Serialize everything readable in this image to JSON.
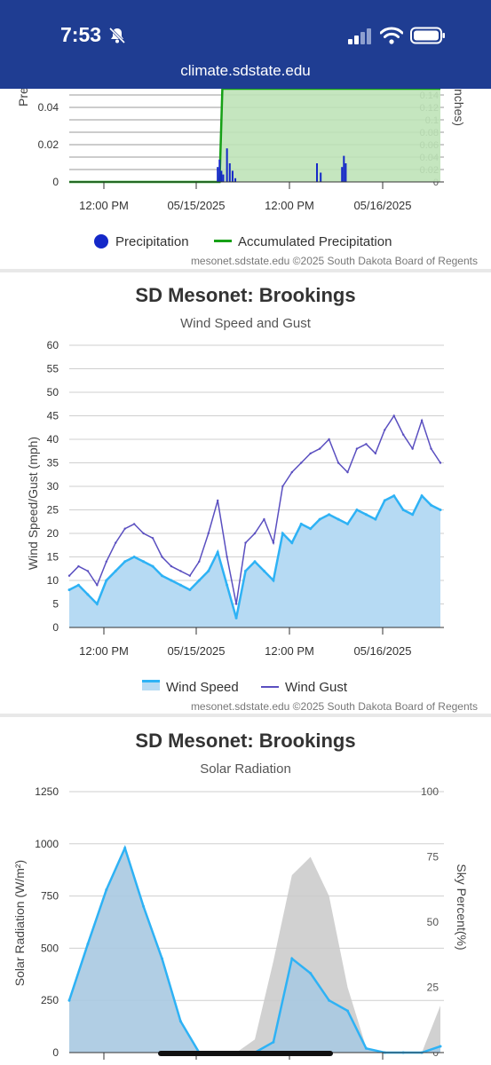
{
  "status_bar": {
    "time": "7:53"
  },
  "browser": {
    "url": "climate.sdstate.edu"
  },
  "precip_chart": {
    "partial_left_label": "Pre",
    "partial_right_label": "nches)",
    "legend": {
      "precipitation": "Precipitation",
      "accumulated": "Accumulated Precipitation"
    },
    "credit": "mesonet.sdstate.edu ©2025 South Dakota Board of Regents",
    "colors": {
      "precipitation": "#1428c8",
      "accumulated": "#16a016",
      "area": "#bfe3b8"
    }
  },
  "wind_chart": {
    "title": "SD Mesonet: Brookings",
    "subtitle": "Wind Speed and Gust",
    "legend": {
      "speed": "Wind Speed",
      "gust": "Wind Gust"
    },
    "credit": "mesonet.sdstate.edu ©2025 South Dakota Board of Regents",
    "colors": {
      "speed": "#2eb2f5",
      "speed_fill": "#b6daf3",
      "gust": "#5a4fc0"
    }
  },
  "solar_chart": {
    "title": "SD Mesonet: Brookings",
    "subtitle": "Solar Radiation",
    "colors": {
      "solar": "#2eb2f5",
      "solar_fill": "#a9c9e1",
      "sky": "#c9c9c9"
    }
  },
  "chart_data": [
    {
      "type": "line",
      "ylabel": "Pre",
      "y2label": "nches)",
      "yticks": [
        "0",
        "0.02",
        "0.04"
      ],
      "y2ticks": [
        "0",
        "0.02",
        "0.04",
        "0.06",
        "0.08",
        "0.1",
        "0.12",
        "0.14"
      ],
      "xticks": [
        "12:00 PM",
        "05/15/2025",
        "12:00 PM",
        "05/16/2025"
      ],
      "series": [
        {
          "name": "Precipitation",
          "x": [
            1.6,
            1.62,
            1.64,
            1.66,
            1.7,
            1.73,
            1.76,
            1.79,
            2.67,
            2.71,
            2.94,
            2.96,
            2.98
          ],
          "values": [
            0.008,
            0.012,
            0.006,
            0.004,
            0.018,
            0.01,
            0.006,
            0.002,
            0.01,
            0.005,
            0.008,
            0.014,
            0.01
          ]
        },
        {
          "name": "Accumulated Precipitation",
          "x": [
            0,
            1.62,
            1.65,
            1.72,
            1.8,
            2.7,
            2.95,
            3.0,
            4.0
          ],
          "values": [
            0,
            0,
            0.15,
            0.15,
            0.15,
            0.15,
            0.15,
            0.15,
            0.15
          ]
        }
      ]
    },
    {
      "type": "line",
      "title": "SD Mesonet: Brookings",
      "subtitle": "Wind Speed and Gust",
      "ylabel": "Wind Speed/Gust (mph)",
      "ylim": [
        0,
        60
      ],
      "yticks": [
        "0",
        "5",
        "10",
        "15",
        "20",
        "25",
        "30",
        "35",
        "40",
        "45",
        "50",
        "55",
        "60"
      ],
      "xticks": [
        "12:00 PM",
        "05/15/2025",
        "12:00 PM",
        "05/16/2025"
      ],
      "x": [
        0,
        0.1,
        0.2,
        0.3,
        0.4,
        0.5,
        0.6,
        0.7,
        0.8,
        0.9,
        1.0,
        1.1,
        1.2,
        1.3,
        1.4,
        1.5,
        1.6,
        1.7,
        1.8,
        1.9,
        2.0,
        2.1,
        2.2,
        2.3,
        2.4,
        2.5,
        2.6,
        2.7,
        2.8,
        2.9,
        3.0,
        3.1,
        3.2,
        3.3,
        3.4,
        3.5,
        3.6,
        3.7,
        3.8,
        3.9,
        4.0
      ],
      "series": [
        {
          "name": "Wind Speed",
          "values": [
            8,
            9,
            7,
            5,
            10,
            12,
            14,
            15,
            14,
            13,
            11,
            10,
            9,
            8,
            10,
            12,
            16,
            9,
            2,
            12,
            14,
            12,
            10,
            20,
            18,
            22,
            21,
            23,
            24,
            23,
            22,
            25,
            24,
            23,
            27,
            28,
            25,
            24,
            28,
            26,
            25
          ]
        },
        {
          "name": "Wind Gust",
          "values": [
            11,
            13,
            12,
            9,
            14,
            18,
            21,
            22,
            20,
            19,
            15,
            13,
            12,
            11,
            14,
            20,
            27,
            15,
            5,
            18,
            20,
            23,
            18,
            30,
            33,
            35,
            37,
            38,
            40,
            35,
            33,
            38,
            39,
            37,
            42,
            45,
            41,
            38,
            44,
            38,
            35
          ]
        }
      ]
    },
    {
      "type": "area",
      "title": "SD Mesonet: Brookings",
      "subtitle": "Solar Radiation",
      "ylabel": "Solar Radiation (W/m²)",
      "y2label": "Sky Percent(%)",
      "ylim": [
        0,
        1250
      ],
      "y2lim": [
        0,
        100
      ],
      "yticks": [
        "0",
        "250",
        "500",
        "750",
        "1000",
        "1250"
      ],
      "y2ticks": [
        "0",
        "25",
        "50",
        "75",
        "100"
      ],
      "x": [
        0,
        0.2,
        0.4,
        0.6,
        0.8,
        1.0,
        1.2,
        1.4,
        1.6,
        1.8,
        2.0,
        2.2,
        2.4,
        2.6,
        2.8,
        3.0,
        3.2,
        3.4,
        3.6,
        3.8,
        4.0
      ],
      "series": [
        {
          "name": "Solar Radiation",
          "values": [
            250,
            520,
            780,
            980,
            700,
            450,
            150,
            0,
            0,
            0,
            0,
            50,
            450,
            380,
            250,
            200,
            20,
            0,
            0,
            0,
            30
          ]
        },
        {
          "name": "Sky Percent",
          "values": [
            0,
            0,
            0,
            0,
            0,
            0,
            0,
            0,
            0,
            0,
            5,
            35,
            68,
            75,
            60,
            25,
            2,
            0,
            0,
            0,
            18
          ]
        }
      ]
    }
  ]
}
